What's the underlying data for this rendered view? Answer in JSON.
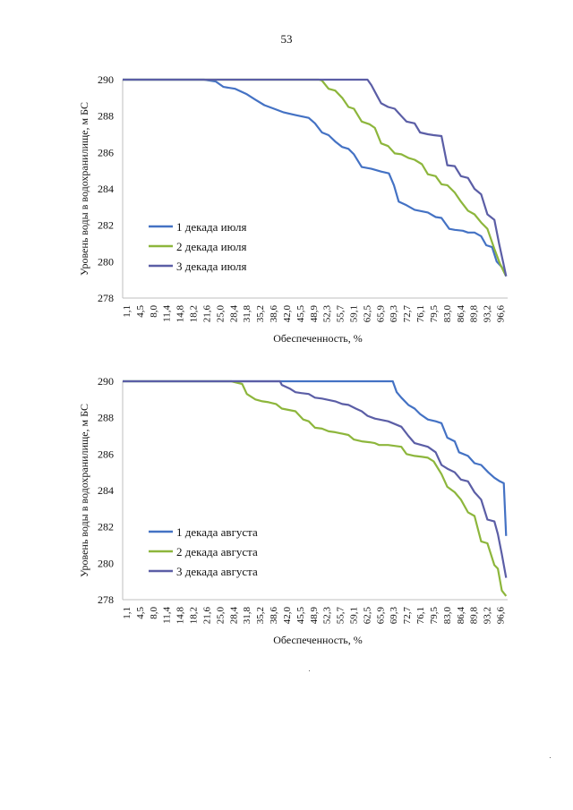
{
  "page_number": "53",
  "chart_data": [
    {
      "type": "line",
      "title": "",
      "xlabel": "Обеспеченность, %",
      "ylabel": "Уровень воды в водохранилище, м БС",
      "ylim": [
        278,
        290
      ],
      "yticks": [
        278,
        280,
        282,
        284,
        286,
        288,
        290
      ],
      "xlim": [
        1.1,
        100
      ],
      "categories": [
        "1,1",
        "4,5",
        "8,0",
        "11,4",
        "14,8",
        "18,2",
        "21,6",
        "25,0",
        "28,4",
        "31,8",
        "35,2",
        "38,6",
        "42,0",
        "45,5",
        "48,9",
        "52,3",
        "55,7",
        "59,1",
        "62,5",
        "65,9",
        "69,3",
        "72,7",
        "76,1",
        "79,5",
        "83,0",
        "86,4",
        "89,8",
        "93,2",
        "96,6"
      ],
      "grid": false,
      "legend_position": "bottom-left",
      "series": [
        {
          "name": "1 декада июля",
          "color": "#4472C4",
          "x": [
            1.1,
            22.0,
            25.0,
            27.0,
            30.0,
            33.0,
            35.2,
            37.5,
            40.0,
            42.5,
            45.5,
            48.9,
            50.5,
            52.3,
            54.0,
            55.7,
            57.5,
            59.1,
            60.5,
            62.5,
            65.0,
            67.5,
            69.5,
            70.8,
            72.0,
            74.0,
            76.1,
            79.5,
            81.5,
            83.0,
            85.0,
            86.4,
            88.5,
            89.8,
            91.5,
            93.2,
            94.5,
            96.0,
            97.2,
            98.5,
            99.6
          ],
          "values": [
            290.0,
            290.0,
            289.9,
            289.6,
            289.5,
            289.2,
            288.9,
            288.6,
            288.4,
            288.2,
            288.05,
            287.9,
            287.6,
            287.1,
            286.95,
            286.6,
            286.3,
            286.2,
            285.9,
            285.2,
            285.1,
            284.95,
            284.85,
            284.2,
            283.3,
            283.1,
            282.85,
            282.7,
            282.45,
            282.4,
            281.8,
            281.75,
            281.7,
            281.6,
            281.6,
            281.4,
            280.9,
            280.8,
            280.0,
            279.7,
            279.2
          ]
        },
        {
          "name": "2 декада июля",
          "color": "#8DB63C",
          "x": [
            1.1,
            51.5,
            52.3,
            54.0,
            55.7,
            57.5,
            59.1,
            60.5,
            62.5,
            64.5,
            65.9,
            67.5,
            69.3,
            71.0,
            72.7,
            74.5,
            76.1,
            78.0,
            79.5,
            81.5,
            83.0,
            84.5,
            86.4,
            88.0,
            89.8,
            91.5,
            93.2,
            94.8,
            96.6,
            98.0,
            99.6
          ],
          "values": [
            290.0,
            290.0,
            289.95,
            289.5,
            289.4,
            289.0,
            288.5,
            288.4,
            287.7,
            287.55,
            287.35,
            286.5,
            286.35,
            285.95,
            285.9,
            285.7,
            285.6,
            285.35,
            284.8,
            284.7,
            284.25,
            284.2,
            283.8,
            283.3,
            282.8,
            282.6,
            282.15,
            281.8,
            280.7,
            279.9,
            279.2
          ]
        },
        {
          "name": "3 декада июля",
          "color": "#5B5EA6",
          "x": [
            1.1,
            64.0,
            65.0,
            66.5,
            67.5,
            69.3,
            71.0,
            72.7,
            74.0,
            76.1,
            77.5,
            79.5,
            81.0,
            83.0,
            84.5,
            86.4,
            88.0,
            89.8,
            91.5,
            93.2,
            94.8,
            96.6,
            97.8,
            99.0,
            99.6
          ],
          "values": [
            290.0,
            290.0,
            289.7,
            289.1,
            288.7,
            288.5,
            288.4,
            288.0,
            287.7,
            287.6,
            287.1,
            287.0,
            286.95,
            286.9,
            285.3,
            285.25,
            284.7,
            284.6,
            284.0,
            283.7,
            282.6,
            282.3,
            281.0,
            279.8,
            279.2
          ]
        }
      ]
    },
    {
      "type": "line",
      "title": "",
      "xlabel": "Обеспеченность, %",
      "ylabel": "Уровень воды в водохранилище, м БС",
      "ylim": [
        278,
        290
      ],
      "yticks": [
        278,
        280,
        282,
        284,
        286,
        288,
        290
      ],
      "xlim": [
        1.1,
        100
      ],
      "categories": [
        "1,1",
        "4,5",
        "8,0",
        "11,4",
        "14,8",
        "18,2",
        "21,6",
        "25,0",
        "28,4",
        "31,8",
        "35,2",
        "38,6",
        "42,0",
        "45,5",
        "48,9",
        "52,3",
        "55,7",
        "59,1",
        "62,5",
        "65,9",
        "69,3",
        "72,7",
        "76,1",
        "79,5",
        "83,0",
        "86,4",
        "89,8",
        "93,2",
        "96,6"
      ],
      "grid": false,
      "legend_position": "bottom-left",
      "series": [
        {
          "name": "1 декада августа",
          "color": "#4472C4",
          "x": [
            1.1,
            70.5,
            71.5,
            72.7,
            74.5,
            76.1,
            77.5,
            79.5,
            81.5,
            83.0,
            84.5,
            86.4,
            87.5,
            89.8,
            91.5,
            93.2,
            95.0,
            96.6,
            98.0,
            99.0,
            99.6
          ],
          "values": [
            290.0,
            290.0,
            289.4,
            289.1,
            288.7,
            288.5,
            288.2,
            287.9,
            287.8,
            287.7,
            286.9,
            286.7,
            286.1,
            285.9,
            285.5,
            285.4,
            285.0,
            284.7,
            284.5,
            284.4,
            281.5
          ]
        },
        {
          "name": "2 декада августа",
          "color": "#8DB63C",
          "x": [
            1.1,
            29.0,
            31.8,
            33.0,
            35.2,
            37.0,
            38.6,
            40.5,
            42.0,
            45.5,
            47.5,
            48.9,
            50.5,
            52.3,
            54.0,
            55.7,
            59.1,
            60.5,
            62.5,
            64.5,
            65.9,
            67.0,
            69.3,
            71.0,
            72.7,
            74.0,
            76.1,
            78.0,
            79.5,
            81.0,
            83.0,
            84.5,
            86.4,
            88.0,
            89.8,
            91.5,
            93.2,
            94.8,
            96.6,
            97.5,
            98.5,
            99.6
          ],
          "values": [
            290.0,
            290.0,
            289.85,
            289.3,
            289.0,
            288.9,
            288.85,
            288.75,
            288.5,
            288.35,
            287.9,
            287.8,
            287.45,
            287.4,
            287.25,
            287.2,
            287.05,
            286.8,
            286.7,
            286.65,
            286.6,
            286.5,
            286.5,
            286.45,
            286.4,
            286.0,
            285.9,
            285.85,
            285.8,
            285.6,
            284.9,
            284.2,
            283.9,
            283.5,
            282.8,
            282.6,
            281.2,
            281.1,
            279.9,
            279.7,
            278.5,
            278.2
          ]
        },
        {
          "name": "3 декада августа",
          "color": "#5B5EA6",
          "x": [
            1.1,
            41.5,
            42.0,
            44.0,
            45.5,
            47.0,
            48.9,
            50.5,
            52.3,
            55.7,
            57.5,
            59.1,
            61.0,
            62.5,
            64.0,
            65.9,
            69.3,
            70.5,
            72.7,
            74.5,
            76.1,
            79.5,
            81.5,
            83.0,
            84.5,
            86.4,
            88.0,
            89.8,
            91.5,
            93.2,
            94.8,
            96.6,
            97.5,
            98.5,
            99.6
          ],
          "values": [
            290.0,
            290.0,
            289.8,
            289.6,
            289.4,
            289.35,
            289.3,
            289.1,
            289.05,
            288.9,
            288.75,
            288.7,
            288.5,
            288.35,
            288.1,
            287.95,
            287.8,
            287.7,
            287.5,
            287.0,
            286.6,
            286.4,
            286.1,
            285.4,
            285.2,
            285.0,
            284.6,
            284.5,
            283.9,
            283.5,
            282.4,
            282.3,
            281.6,
            280.5,
            279.2
          ]
        }
      ]
    }
  ]
}
